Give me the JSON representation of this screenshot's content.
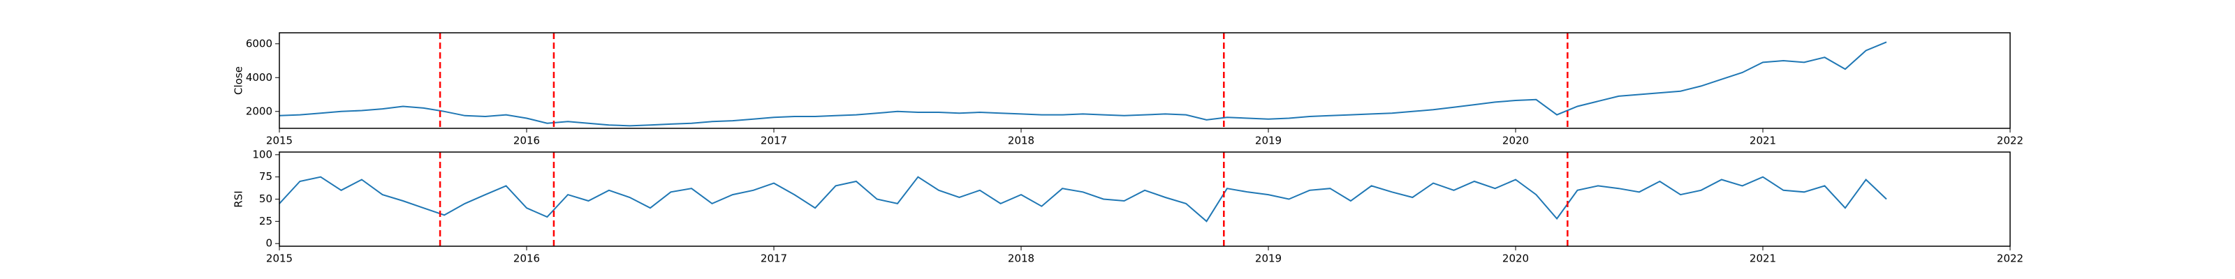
{
  "chart_data": [
    {
      "type": "line",
      "ylabel": "Close",
      "color": "#1f77b4",
      "event_color": "red",
      "x": [
        2015.0,
        2015.083,
        2015.167,
        2015.25,
        2015.333,
        2015.417,
        2015.5,
        2015.583,
        2015.667,
        2015.75,
        2015.833,
        2015.917,
        2016.0,
        2016.083,
        2016.167,
        2016.25,
        2016.333,
        2016.417,
        2016.5,
        2016.583,
        2016.667,
        2016.75,
        2016.833,
        2016.917,
        2017.0,
        2017.083,
        2017.167,
        2017.25,
        2017.333,
        2017.417,
        2017.5,
        2017.583,
        2017.667,
        2017.75,
        2017.833,
        2017.917,
        2018.0,
        2018.083,
        2018.167,
        2018.25,
        2018.333,
        2018.417,
        2018.5,
        2018.583,
        2018.667,
        2018.75,
        2018.833,
        2018.917,
        2019.0,
        2019.083,
        2019.167,
        2019.25,
        2019.333,
        2019.417,
        2019.5,
        2019.583,
        2019.667,
        2019.75,
        2019.833,
        2019.917,
        2020.0,
        2020.083,
        2020.167,
        2020.25,
        2020.333,
        2020.417,
        2020.5,
        2020.583,
        2020.667,
        2020.75,
        2020.833,
        2020.917,
        2021.0,
        2021.083,
        2021.167,
        2021.25,
        2021.333,
        2021.417,
        2021.5
      ],
      "values": [
        1750,
        1800,
        1900,
        2000,
        2050,
        2150,
        2300,
        2200,
        2000,
        1750,
        1700,
        1800,
        1600,
        1300,
        1400,
        1300,
        1200,
        1150,
        1200,
        1250,
        1300,
        1400,
        1450,
        1550,
        1650,
        1700,
        1700,
        1750,
        1800,
        1900,
        2000,
        1950,
        1950,
        1900,
        1950,
        1900,
        1850,
        1800,
        1800,
        1850,
        1800,
        1750,
        1800,
        1850,
        1800,
        1500,
        1650,
        1600,
        1550,
        1600,
        1700,
        1750,
        1800,
        1850,
        1900,
        2000,
        2100,
        2250,
        2400,
        2550,
        2650,
        2700,
        1800,
        2300,
        2600,
        2900,
        3000,
        3100,
        3200,
        3500,
        3900,
        4300,
        4900,
        5000,
        4900,
        5200,
        4500,
        5600,
        6100
      ],
      "events": [
        2015.65,
        2016.11,
        2018.82,
        2020.21
      ],
      "xlim": [
        2015,
        2022
      ],
      "xticks": [
        2015,
        2016,
        2017,
        2018,
        2019,
        2020,
        2021,
        2022
      ],
      "ylim": [
        1000,
        6650
      ],
      "yticks": [
        2000,
        4000,
        6000
      ]
    },
    {
      "type": "line",
      "ylabel": "RSI",
      "color": "#1f77b4",
      "event_color": "red",
      "x": [
        2015.0,
        2015.083,
        2015.167,
        2015.25,
        2015.333,
        2015.417,
        2015.5,
        2015.583,
        2015.667,
        2015.75,
        2015.833,
        2015.917,
        2016.0,
        2016.083,
        2016.167,
        2016.25,
        2016.333,
        2016.417,
        2016.5,
        2016.583,
        2016.667,
        2016.75,
        2016.833,
        2016.917,
        2017.0,
        2017.083,
        2017.167,
        2017.25,
        2017.333,
        2017.417,
        2017.5,
        2017.583,
        2017.667,
        2017.75,
        2017.833,
        2017.917,
        2018.0,
        2018.083,
        2018.167,
        2018.25,
        2018.333,
        2018.417,
        2018.5,
        2018.583,
        2018.667,
        2018.75,
        2018.833,
        2018.917,
        2019.0,
        2019.083,
        2019.167,
        2019.25,
        2019.333,
        2019.417,
        2019.5,
        2019.583,
        2019.667,
        2019.75,
        2019.833,
        2019.917,
        2020.0,
        2020.083,
        2020.167,
        2020.25,
        2020.333,
        2020.417,
        2020.5,
        2020.583,
        2020.667,
        2020.75,
        2020.833,
        2020.917,
        2021.0,
        2021.083,
        2021.167,
        2021.25,
        2021.333,
        2021.417,
        2021.5
      ],
      "values": [
        45,
        70,
        75,
        60,
        72,
        55,
        48,
        40,
        32,
        45,
        55,
        65,
        40,
        30,
        55,
        48,
        60,
        52,
        40,
        58,
        62,
        45,
        55,
        60,
        68,
        55,
        40,
        65,
        70,
        50,
        45,
        75,
        60,
        52,
        60,
        45,
        55,
        42,
        62,
        58,
        50,
        48,
        60,
        52,
        45,
        25,
        62,
        58,
        55,
        50,
        60,
        62,
        48,
        65,
        58,
        52,
        68,
        60,
        70,
        62,
        72,
        55,
        28,
        60,
        65,
        62,
        58,
        70,
        55,
        60,
        72,
        65,
        75,
        60,
        58,
        65,
        40,
        72,
        50
      ],
      "events": [
        2015.65,
        2016.11,
        2018.82,
        2020.21
      ],
      "xlim": [
        2015,
        2022
      ],
      "xticks": [
        2015,
        2016,
        2017,
        2018,
        2019,
        2020,
        2021,
        2022
      ],
      "ylim": [
        -3,
        103
      ],
      "yticks": [
        0,
        25,
        50,
        75,
        100
      ]
    }
  ]
}
